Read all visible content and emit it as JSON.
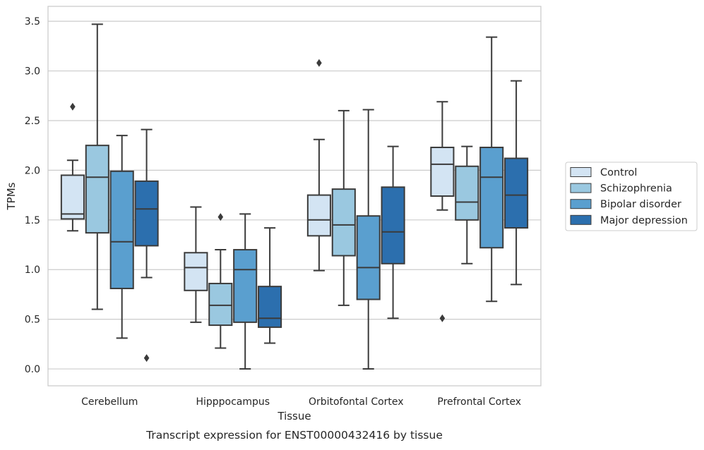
{
  "caption": "Transcript expression for ENST00000432416 by tissue",
  "chart_data": {
    "type": "box",
    "xlabel": "Tissue",
    "ylabel": "TPMs",
    "ylim": [
      -0.17,
      3.65
    ],
    "yticks": [
      "0.0",
      "0.5",
      "1.0",
      "1.5",
      "2.0",
      "2.5",
      "3.0",
      "3.5"
    ],
    "grid": "horizontal",
    "legend_position": "right",
    "categories": [
      "Cerebellum",
      "Hipppocampus",
      "Orbitofontal Cortex",
      "Prefrontal Cortex"
    ],
    "series": [
      {
        "name": "Control",
        "color": "#d3e4f3",
        "boxes": [
          {
            "whisker_low": 1.39,
            "q1": 1.51,
            "median": 1.56,
            "q3": 1.95,
            "whisker_high": 2.1,
            "outliers": [
              2.64
            ]
          },
          {
            "whisker_low": 0.47,
            "q1": 0.79,
            "median": 1.02,
            "q3": 1.17,
            "whisker_high": 1.63,
            "outliers": []
          },
          {
            "whisker_low": 0.99,
            "q1": 1.34,
            "median": 1.5,
            "q3": 1.75,
            "whisker_high": 2.31,
            "outliers": [
              3.08
            ]
          },
          {
            "whisker_low": 1.6,
            "q1": 1.74,
            "median": 2.06,
            "q3": 2.23,
            "whisker_high": 2.69,
            "outliers": [
              0.51
            ]
          }
        ]
      },
      {
        "name": "Schizophrenia",
        "color": "#9ac8e0",
        "boxes": [
          {
            "whisker_low": 0.6,
            "q1": 1.37,
            "median": 1.93,
            "q3": 2.25,
            "whisker_high": 3.47,
            "outliers": []
          },
          {
            "whisker_low": 0.21,
            "q1": 0.44,
            "median": 0.64,
            "q3": 0.86,
            "whisker_high": 1.2,
            "outliers": [
              1.53
            ]
          },
          {
            "whisker_low": 0.64,
            "q1": 1.14,
            "median": 1.45,
            "q3": 1.81,
            "whisker_high": 2.6,
            "outliers": []
          },
          {
            "whisker_low": 1.06,
            "q1": 1.5,
            "median": 1.68,
            "q3": 2.04,
            "whisker_high": 2.24,
            "outliers": []
          }
        ]
      },
      {
        "name": "Bipolar disorder",
        "color": "#5a9fcf",
        "boxes": [
          {
            "whisker_low": 0.31,
            "q1": 0.81,
            "median": 1.28,
            "q3": 1.99,
            "whisker_high": 2.35,
            "outliers": []
          },
          {
            "whisker_low": 0.0,
            "q1": 0.47,
            "median": 1.0,
            "q3": 1.2,
            "whisker_high": 1.56,
            "outliers": []
          },
          {
            "whisker_low": 0.0,
            "q1": 0.7,
            "median": 1.02,
            "q3": 1.54,
            "whisker_high": 2.61,
            "outliers": []
          },
          {
            "whisker_low": 0.68,
            "q1": 1.22,
            "median": 1.93,
            "q3": 2.23,
            "whisker_high": 3.34,
            "outliers": []
          }
        ]
      },
      {
        "name": "Major depression",
        "color": "#2c6fae",
        "boxes": [
          {
            "whisker_low": 0.92,
            "q1": 1.24,
            "median": 1.61,
            "q3": 1.89,
            "whisker_high": 2.41,
            "outliers": [
              0.11
            ]
          },
          {
            "whisker_low": 0.26,
            "q1": 0.42,
            "median": 0.51,
            "q3": 0.83,
            "whisker_high": 1.42,
            "outliers": []
          },
          {
            "whisker_low": 0.51,
            "q1": 1.06,
            "median": 1.38,
            "q3": 1.83,
            "whisker_high": 2.24,
            "outliers": []
          },
          {
            "whisker_low": 0.85,
            "q1": 1.42,
            "median": 1.75,
            "q3": 2.12,
            "whisker_high": 2.9,
            "outliers": []
          }
        ]
      }
    ]
  }
}
